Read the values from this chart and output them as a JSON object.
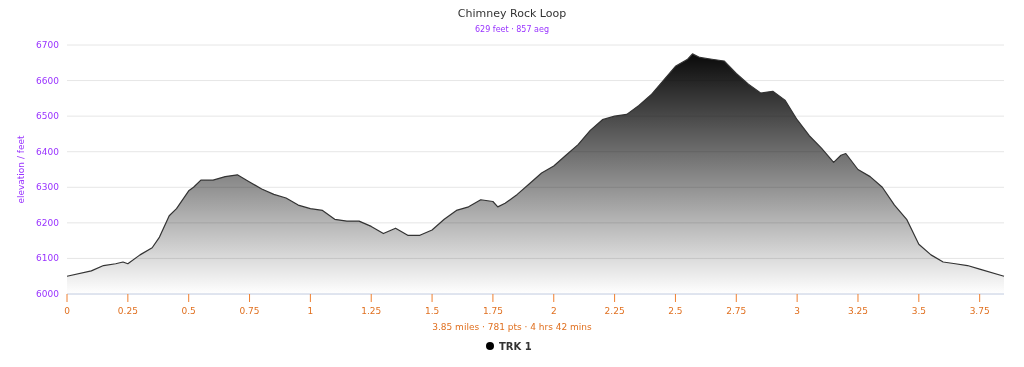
{
  "chart_data": {
    "type": "area",
    "title": "Chimney Rock Loop",
    "subtitle": "629 feet · 857 aeg",
    "ylabel": "elevation / feet",
    "annotations": [
      "3.85 miles · 781 pts · 4 hrs 42 mins"
    ],
    "xlim": [
      0,
      3.85
    ],
    "xticks": [
      0,
      0.25,
      0.5,
      0.75,
      1,
      1.25,
      1.5,
      1.75,
      2,
      2.25,
      2.5,
      2.75,
      3,
      3.25,
      3.5,
      3.75
    ],
    "ylim": [
      6000,
      6700
    ],
    "yticks": [
      6000,
      6100,
      6200,
      6300,
      6400,
      6500,
      6600,
      6700
    ],
    "grid": "y",
    "legend": "bottom",
    "marker": "none",
    "series": [
      {
        "name": "TRK 1",
        "color": "#000000",
        "x": [
          0,
          0.1,
          0.15,
          0.2,
          0.23,
          0.25,
          0.3,
          0.35,
          0.38,
          0.42,
          0.45,
          0.5,
          0.52,
          0.55,
          0.6,
          0.65,
          0.7,
          0.75,
          0.8,
          0.85,
          0.9,
          0.95,
          1,
          1.05,
          1.1,
          1.15,
          1.2,
          1.25,
          1.3,
          1.35,
          1.4,
          1.45,
          1.5,
          1.55,
          1.6,
          1.65,
          1.7,
          1.75,
          1.77,
          1.8,
          1.85,
          1.9,
          1.95,
          2,
          2.05,
          2.1,
          2.15,
          2.2,
          2.25,
          2.3,
          2.35,
          2.4,
          2.45,
          2.5,
          2.55,
          2.57,
          2.6,
          2.65,
          2.7,
          2.75,
          2.8,
          2.85,
          2.9,
          2.95,
          3,
          3.05,
          3.1,
          3.15,
          3.18,
          3.2,
          3.25,
          3.3,
          3.35,
          3.4,
          3.45,
          3.5,
          3.55,
          3.6,
          3.65,
          3.7,
          3.75,
          3.85
        ],
        "values": [
          6050,
          6065,
          6080,
          6085,
          6090,
          6085,
          6110,
          6130,
          6160,
          6220,
          6240,
          6290,
          6300,
          6320,
          6320,
          6330,
          6335,
          6315,
          6295,
          6280,
          6270,
          6250,
          6240,
          6235,
          6210,
          6205,
          6205,
          6190,
          6170,
          6185,
          6165,
          6165,
          6180,
          6210,
          6235,
          6245,
          6265,
          6260,
          6245,
          6255,
          6280,
          6310,
          6340,
          6360,
          6390,
          6420,
          6460,
          6490,
          6500,
          6505,
          6530,
          6560,
          6600,
          6640,
          6660,
          6675,
          6665,
          6660,
          6655,
          6620,
          6590,
          6565,
          6570,
          6545,
          6490,
          6445,
          6410,
          6370,
          6390,
          6395,
          6350,
          6330,
          6300,
          6250,
          6210,
          6140,
          6110,
          6090,
          6085,
          6080,
          6070,
          6050
        ]
      }
    ]
  }
}
